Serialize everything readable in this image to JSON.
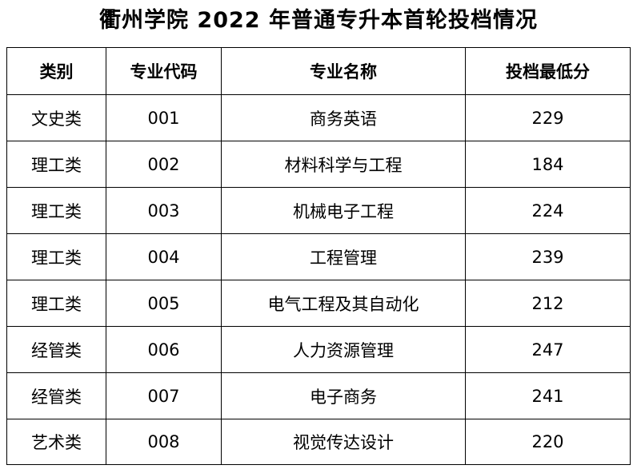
{
  "title": "衢州学院 2022 年普通专升本首轮投档情况",
  "table": {
    "headers": [
      "类别",
      "专业代码",
      "专业名称",
      "投档最低分"
    ],
    "rows": [
      [
        "文史类",
        "001",
        "商务英语",
        "229"
      ],
      [
        "理工类",
        "002",
        "材料科学与工程",
        "184"
      ],
      [
        "理工类",
        "003",
        "机械电子工程",
        "224"
      ],
      [
        "理工类",
        "004",
        "工程管理",
        "239"
      ],
      [
        "理工类",
        "005",
        "电气工程及其自动化",
        "212"
      ],
      [
        "经管类",
        "006",
        "人力资源管理",
        "247"
      ],
      [
        "经管类",
        "007",
        "电子商务",
        "241"
      ],
      [
        "艺术类",
        "008",
        "视觉传达设计",
        "220"
      ]
    ]
  }
}
